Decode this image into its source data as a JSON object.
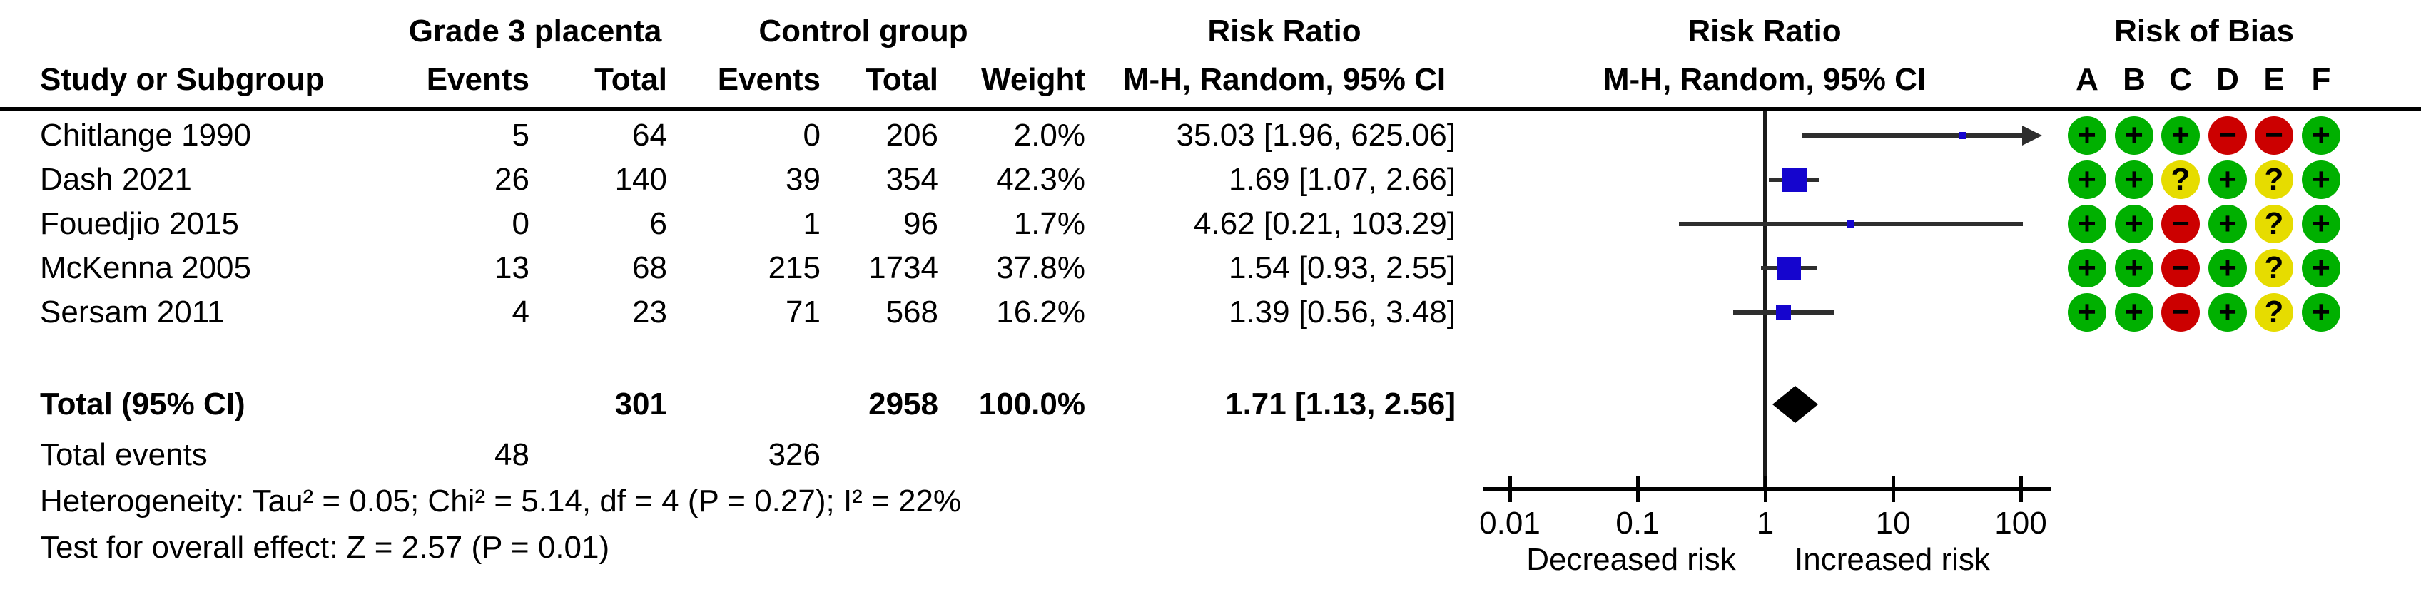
{
  "header": {
    "study": "Study or Subgroup",
    "group_exp": "Grade 3 placenta",
    "group_ctrl": "Control group",
    "events": "Events",
    "total": "Total",
    "weight": "Weight",
    "rr_title": "Risk Ratio",
    "rr_sub": "M-H, Random, 95% CI",
    "rob_title": "Risk of Bias"
  },
  "chart_data": {
    "type": "forest",
    "effect_measure": "Risk Ratio",
    "method": "M-H, Random, 95% CI",
    "x_scale": "log10",
    "x_ticks": [
      0.01,
      0.1,
      1,
      10,
      100
    ],
    "x_tick_labels": [
      "0.01",
      "0.1",
      "1",
      "10",
      "100"
    ],
    "x_axis_left_label": "Decreased risk",
    "x_axis_right_label": "Increased risk",
    "studies": [
      {
        "name": "Chitlange 1990",
        "events_exp": "5",
        "total_exp": "64",
        "events_ctrl": "0",
        "total_ctrl": "206",
        "weight_pct": 2.0,
        "weight_label": "2.0%",
        "rr": 35.03,
        "ci_low": 1.96,
        "ci_high": 625.06,
        "rr_label": "35.03 [1.96, 625.06]"
      },
      {
        "name": "Dash 2021",
        "events_exp": "26",
        "total_exp": "140",
        "events_ctrl": "39",
        "total_ctrl": "354",
        "weight_pct": 42.3,
        "weight_label": "42.3%",
        "rr": 1.69,
        "ci_low": 1.07,
        "ci_high": 2.66,
        "rr_label": "1.69 [1.07, 2.66]"
      },
      {
        "name": "Fouedjio 2015",
        "events_exp": "0",
        "total_exp": "6",
        "events_ctrl": "1",
        "total_ctrl": "96",
        "weight_pct": 1.7,
        "weight_label": "1.7%",
        "rr": 4.62,
        "ci_low": 0.21,
        "ci_high": 103.29,
        "rr_label": "4.62 [0.21, 103.29]"
      },
      {
        "name": "McKenna 2005",
        "events_exp": "13",
        "total_exp": "68",
        "events_ctrl": "215",
        "total_ctrl": "1734",
        "weight_pct": 37.8,
        "weight_label": "37.8%",
        "rr": 1.54,
        "ci_low": 0.93,
        "ci_high": 2.55,
        "rr_label": "1.54 [0.93, 2.55]"
      },
      {
        "name": "Sersam 2011",
        "events_exp": "4",
        "total_exp": "23",
        "events_ctrl": "71",
        "total_ctrl": "568",
        "weight_pct": 16.2,
        "weight_label": "16.2%",
        "rr": 1.39,
        "ci_low": 0.56,
        "ci_high": 3.48,
        "rr_label": "1.39 [0.56, 3.48]"
      }
    ],
    "total": {
      "label": "Total (95% CI)",
      "total_exp": "301",
      "total_ctrl": "2958",
      "weight_label": "100.0%",
      "rr": 1.71,
      "ci_low": 1.13,
      "ci_high": 2.56,
      "rr_label": "1.71 [1.13, 2.56]"
    },
    "total_events": {
      "label": "Total events",
      "exp": "48",
      "ctrl": "326"
    },
    "heterogeneity": "Heterogeneity: Tau² = 0.05; Chi² = 5.14, df = 4 (P = 0.27); I² = 22%",
    "overall_effect": "Test for overall effect: Z = 2.57 (P = 0.01)"
  },
  "risk_of_bias": {
    "columns": [
      "A",
      "B",
      "C",
      "D",
      "E",
      "F"
    ],
    "judgements": [
      [
        "+",
        "+",
        "+",
        "−",
        "−",
        "+"
      ],
      [
        "+",
        "+",
        "?",
        "+",
        "?",
        "+"
      ],
      [
        "+",
        "+",
        "−",
        "+",
        "?",
        "+"
      ],
      [
        "+",
        "+",
        "−",
        "+",
        "?",
        "+"
      ],
      [
        "+",
        "+",
        "−",
        "+",
        "?",
        "+"
      ]
    ],
    "colors": {
      "+": "#00B000",
      "−": "#CC0000",
      "?": "#E6DC00"
    }
  },
  "colors": {
    "marker_blue": "#1505CE",
    "diamond_black": "#000000",
    "ci_line": "#2e2e2e",
    "text": "#000000"
  }
}
